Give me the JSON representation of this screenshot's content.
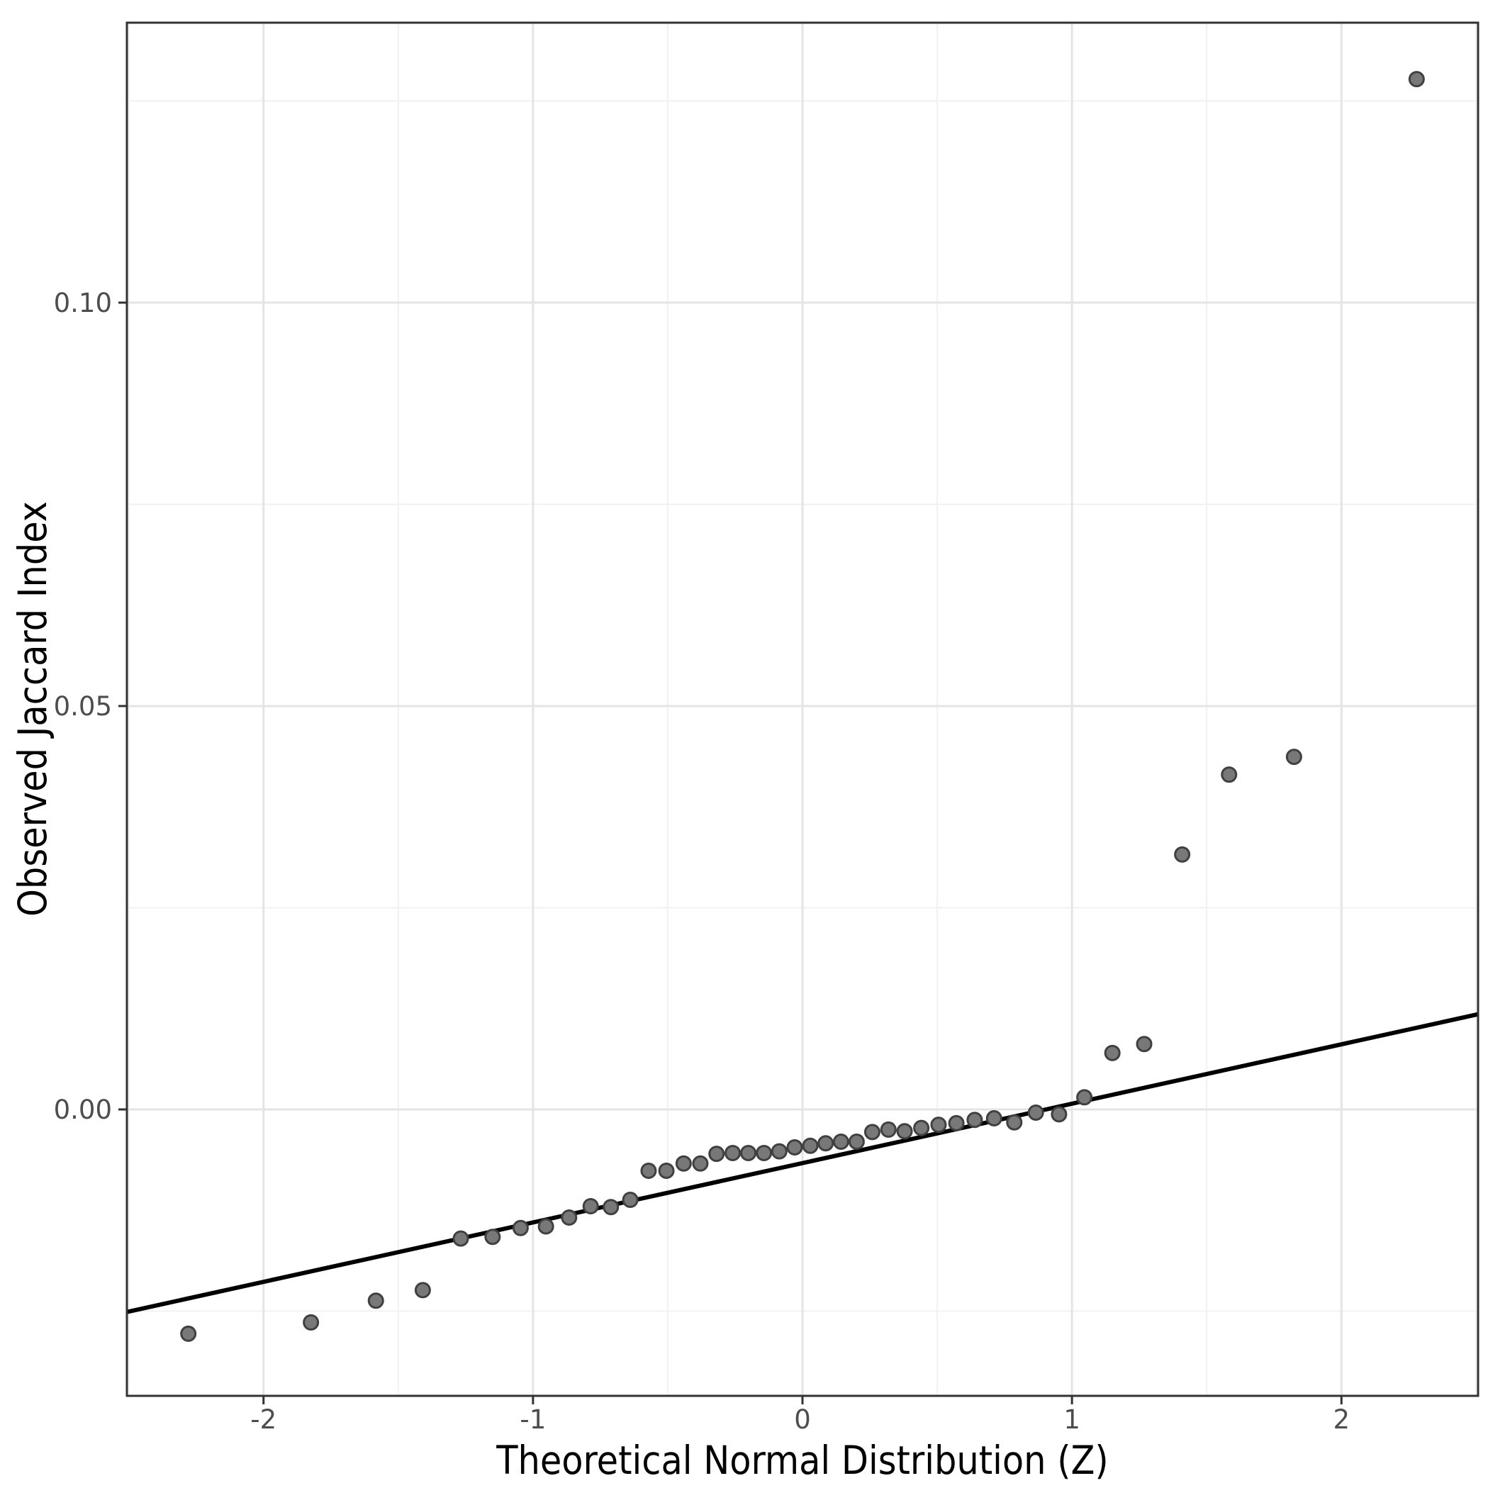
{
  "page": {
    "background": "#ffffff"
  },
  "chart_data": {
    "type": "scatter",
    "subtype": "qq-plot",
    "title": "",
    "xlabel": "Theoretical Normal Distribution (Z)",
    "ylabel": "Observed Jaccard Index",
    "xlim": [
      -2.507,
      2.507
    ],
    "ylim": [
      -0.0355,
      0.1347
    ],
    "grid": true,
    "legend_position": "none",
    "x_ticks": [
      {
        "value": -2,
        "label": "-2"
      },
      {
        "value": -1,
        "label": "-1"
      },
      {
        "value": 0,
        "label": "0"
      },
      {
        "value": 1,
        "label": "1"
      },
      {
        "value": 2,
        "label": "2"
      }
    ],
    "y_ticks": [
      {
        "value": 0.0,
        "label": "0.00"
      },
      {
        "value": 0.05,
        "label": "0.05"
      },
      {
        "value": 0.1,
        "label": "0.10"
      }
    ],
    "x_minor_ticks": [
      -2.5,
      -1.5,
      -0.5,
      0.5,
      1.5,
      2.5
    ],
    "y_minor_ticks": [
      -0.025,
      0.025,
      0.075,
      0.125
    ],
    "series": [
      {
        "name": "observed-quantiles",
        "points": [
          [
            -2.279,
            -0.0278
          ],
          [
            -1.824,
            -0.0264
          ],
          [
            -1.583,
            -0.0237
          ],
          [
            -1.409,
            -0.0224
          ],
          [
            -1.268,
            -0.016
          ],
          [
            -1.15,
            -0.0158
          ],
          [
            -1.046,
            -0.0147
          ],
          [
            -0.952,
            -0.0145
          ],
          [
            -0.866,
            -0.0134
          ],
          [
            -0.786,
            -0.012
          ],
          [
            -0.711,
            -0.0121
          ],
          [
            -0.639,
            -0.0112
          ],
          [
            -0.571,
            -0.0076
          ],
          [
            -0.505,
            -0.0076
          ],
          [
            -0.441,
            -0.0067
          ],
          [
            -0.379,
            -0.0067
          ],
          [
            -0.319,
            -0.0055
          ],
          [
            -0.259,
            -0.0054
          ],
          [
            -0.201,
            -0.0054
          ],
          [
            -0.143,
            -0.0054
          ],
          [
            -0.086,
            -0.0052
          ],
          [
            -0.029,
            -0.0047
          ],
          [
            0.029,
            -0.0045
          ],
          [
            0.086,
            -0.0042
          ],
          [
            0.143,
            -0.004
          ],
          [
            0.201,
            -0.004
          ],
          [
            0.259,
            -0.0028
          ],
          [
            0.319,
            -0.0025
          ],
          [
            0.379,
            -0.0027
          ],
          [
            0.441,
            -0.0023
          ],
          [
            0.505,
            -0.0019
          ],
          [
            0.571,
            -0.0017
          ],
          [
            0.639,
            -0.0013
          ],
          [
            0.711,
            -0.0011
          ],
          [
            0.786,
            -0.0016
          ],
          [
            0.866,
            -0.0004
          ],
          [
            0.952,
            -0.0006
          ],
          [
            1.046,
            0.0015
          ],
          [
            1.15,
            0.007
          ],
          [
            1.268,
            0.0081
          ],
          [
            1.409,
            0.0316
          ],
          [
            1.583,
            0.0415
          ],
          [
            1.824,
            0.0437
          ],
          [
            2.279,
            0.1277
          ]
        ]
      }
    ],
    "reference_line": {
      "x1": -2.507,
      "y1": -0.0251,
      "x2": 2.507,
      "y2": 0.0118
    },
    "style": {
      "point_fill": "#787878",
      "point_stroke": "#404040",
      "point_radius": 10,
      "point_stroke_width": 3,
      "ref_line_color": "#000000",
      "ref_line_width": 6,
      "grid_major_color": "#e4e4e4",
      "grid_minor_color": "#f1f1f1",
      "grid_major_width": 3,
      "grid_minor_width": 2,
      "panel_border_color": "#333333",
      "panel_border_width": 3,
      "tick_color": "#333333",
      "tick_length": 12,
      "tick_label_color": "#4d4d4d",
      "tick_label_size": 37,
      "panel_background": "#ffffff"
    }
  }
}
